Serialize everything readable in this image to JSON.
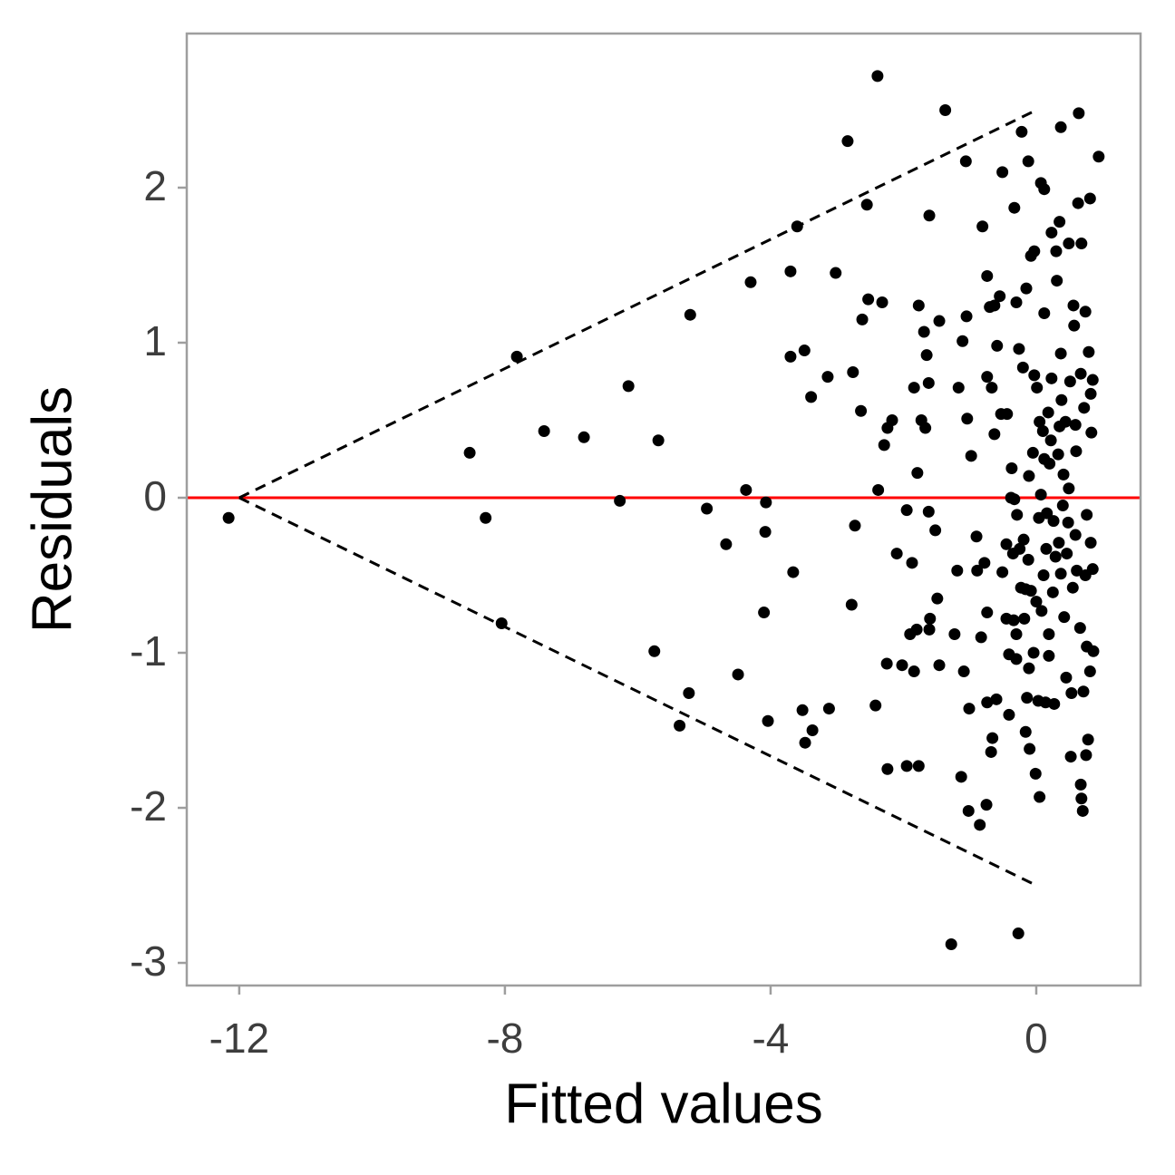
{
  "chart_data": {
    "type": "scatter",
    "xlabel": "Fitted values",
    "ylabel": "Residuals",
    "xlim": [
      -12.79,
      1.57
    ],
    "ylim": [
      -3.146,
      2.994
    ],
    "xticks": [
      -12,
      -8,
      -4,
      0
    ],
    "yticks": [
      -3,
      -2,
      -1,
      0,
      1,
      2
    ],
    "grid": false,
    "color": "#000000",
    "hline": {
      "y": 0,
      "color": "#ff0000"
    },
    "guides": [
      {
        "x": [
          -12,
          0
        ],
        "y": [
          0,
          2.5
        ],
        "color": "#000000",
        "dashed": true
      },
      {
        "x": [
          -12,
          0
        ],
        "y": [
          0,
          -2.5
        ],
        "color": "#000000",
        "dashed": true
      }
    ],
    "x": [
      -12.16,
      -8.53,
      -8.29,
      -8.05,
      -7.82,
      -7.41,
      -6.81,
      -6.27,
      -6.14,
      -5.75,
      -5.69,
      -5.37,
      -5.23,
      -5.21,
      -4.96,
      -4.67,
      -4.49,
      -4.37,
      -4.3,
      -4.1,
      -4.08,
      -4.07,
      -4.04,
      -3.7,
      -3.7,
      -3.66,
      -3.6,
      -3.52,
      -3.49,
      -3.48,
      -3.37,
      -3.39,
      -3.14,
      -3.12,
      -3.02,
      -2.84,
      -2.78,
      -2.76,
      -2.73,
      -2.64,
      -2.62,
      -2.55,
      -2.53,
      -2.42,
      -2.39,
      -2.38,
      -2.32,
      -2.29,
      -2.25,
      -2.24,
      -2.24,
      -2.17,
      -2.1,
      -2.02,
      -1.95,
      -1.95,
      -1.9,
      -1.87,
      -1.84,
      -1.84,
      -1.8,
      -1.79,
      -1.77,
      -1.77,
      -1.73,
      -1.69,
      -1.67,
      -1.65,
      -1.62,
      -1.61,
      -1.62,
      -1.61,
      -1.6,
      -1.52,
      -1.49,
      -1.46,
      -1.46,
      -1.37,
      -1.28,
      -1.23,
      -1.19,
      -1.17,
      -1.13,
      -1.11,
      -1.09,
      -1.06,
      -1.05,
      -1.04,
      -1.02,
      -1.01,
      -0.98,
      -0.9,
      -0.89,
      -0.85,
      -0.83,
      -0.81,
      -0.78,
      -0.75,
      -0.74,
      -0.74,
      -0.74,
      -0.74,
      -0.7,
      -0.68,
      -0.67,
      -0.66,
      -0.63,
      -0.63,
      -0.6,
      -0.59,
      -0.55,
      -0.53,
      -0.51,
      -0.51,
      -0.45,
      -0.45,
      -0.44,
      -0.41,
      -0.41,
      -0.38,
      -0.37,
      -0.35,
      -0.34,
      -0.33,
      -0.33,
      -0.3,
      -0.3,
      -0.3,
      -0.29,
      -0.27,
      -0.26,
      -0.25,
      -0.23,
      -0.22,
      -0.2,
      -0.19,
      -0.18,
      -0.16,
      -0.16,
      -0.15,
      -0.14,
      -0.12,
      -0.12,
      -0.11,
      -0.11,
      -0.1,
      -0.08,
      -0.08,
      -0.05,
      -0.04,
      -0.03,
      -0.03,
      -0.01,
      0.0,
      0.01,
      0.03,
      0.04,
      0.05,
      0.05,
      0.07,
      0.07,
      0.08,
      0.1,
      0.11,
      0.12,
      0.12,
      0.12,
      0.14,
      0.15,
      0.16,
      0.18,
      0.19,
      0.19,
      0.2,
      0.22,
      0.23,
      0.23,
      0.25,
      0.26,
      0.27,
      0.29,
      0.3,
      0.31,
      0.33,
      0.34,
      0.35,
      0.35,
      0.37,
      0.37,
      0.37,
      0.38,
      0.4,
      0.41,
      0.42,
      0.44,
      0.45,
      0.46,
      0.48,
      0.49,
      0.49,
      0.51,
      0.52,
      0.53,
      0.55,
      0.56,
      0.57,
      0.59,
      0.59,
      0.6,
      0.61,
      0.63,
      0.64,
      0.66,
      0.67,
      0.67,
      0.68,
      0.68,
      0.7,
      0.71,
      0.72,
      0.74,
      0.74,
      0.75,
      0.76,
      0.76,
      0.78,
      0.79,
      0.81,
      0.81,
      0.82,
      0.82,
      0.83,
      0.85,
      0.86,
      0.94,
      0.85
    ],
    "values": [
      -0.13,
      0.29,
      -0.13,
      -0.81,
      0.91,
      0.43,
      0.39,
      -0.02,
      0.72,
      -0.99,
      0.37,
      -1.47,
      -1.26,
      1.18,
      -0.07,
      -0.3,
      -1.14,
      0.05,
      1.39,
      -0.74,
      -0.22,
      -0.03,
      -1.44,
      1.46,
      0.91,
      -0.48,
      1.75,
      -1.37,
      0.95,
      -1.58,
      -1.5,
      0.65,
      0.78,
      -1.36,
      1.45,
      2.3,
      -0.69,
      0.81,
      -0.18,
      0.56,
      1.15,
      1.89,
      1.28,
      -1.34,
      2.72,
      0.05,
      1.26,
      0.34,
      -1.07,
      0.45,
      -1.75,
      0.5,
      -0.36,
      -1.08,
      -0.08,
      -1.73,
      -0.88,
      -0.42,
      0.71,
      -1.12,
      -0.85,
      0.16,
      1.24,
      -1.73,
      0.5,
      1.07,
      0.45,
      0.92,
      -0.09,
      1.82,
      0.74,
      -0.85,
      -0.78,
      -0.21,
      -0.65,
      1.14,
      -1.08,
      2.5,
      -2.88,
      -0.88,
      -0.47,
      0.71,
      -1.8,
      1.01,
      -1.12,
      2.17,
      1.17,
      0.51,
      -2.02,
      -1.36,
      0.27,
      -0.25,
      -0.47,
      -2.11,
      -0.9,
      1.75,
      -0.42,
      -1.98,
      1.43,
      -0.74,
      -1.32,
      0.78,
      1.23,
      -1.64,
      0.71,
      -1.55,
      1.24,
      0.41,
      -1.3,
      0.98,
      1.3,
      0.54,
      -0.48,
      2.1,
      -0.3,
      -0.78,
      0.54,
      -1.4,
      -1.01,
      0.0,
      0.19,
      -0.36,
      -0.79,
      -0.01,
      1.87,
      -0.88,
      -1.04,
      1.26,
      -0.11,
      -2.81,
      0.96,
      -0.33,
      -0.58,
      2.36,
      0.84,
      -0.27,
      -0.78,
      -0.59,
      -1.51,
      1.35,
      -1.29,
      2.17,
      -0.4,
      0.14,
      -1.1,
      -1.62,
      1.56,
      -0.6,
      0.29,
      -1.0,
      1.59,
      0.79,
      -1.78,
      -0.67,
      0.71,
      -1.31,
      -0.13,
      0.49,
      -1.93,
      0.02,
      2.03,
      -0.73,
      0.43,
      -0.5,
      0.25,
      1.99,
      1.19,
      -1.32,
      -0.33,
      -0.1,
      0.55,
      -0.88,
      -1.02,
      0.22,
      0.37,
      1.71,
      0.77,
      -0.61,
      -0.15,
      -1.33,
      -0.38,
      1.59,
      1.4,
      0.28,
      -0.29,
      1.78,
      0.46,
      2.39,
      0.93,
      -0.49,
      0.63,
      -0.05,
      0.15,
      -0.77,
      0.49,
      -1.16,
      -0.36,
      -0.16,
      1.64,
      0.06,
      0.75,
      -1.67,
      -1.26,
      -0.58,
      1.24,
      1.11,
      0.47,
      -0.24,
      0.3,
      -0.47,
      1.9,
      2.48,
      -0.84,
      -1.85,
      0.8,
      -1.94,
      1.64,
      -2.02,
      -1.25,
      0.58,
      1.2,
      -0.5,
      -1.66,
      -0.96,
      -0.11,
      -1.56,
      0.94,
      -1.12,
      1.93,
      0.67,
      -0.29,
      0.42,
      -0.46,
      -0.99,
      2.2,
      0.76
    ]
  }
}
